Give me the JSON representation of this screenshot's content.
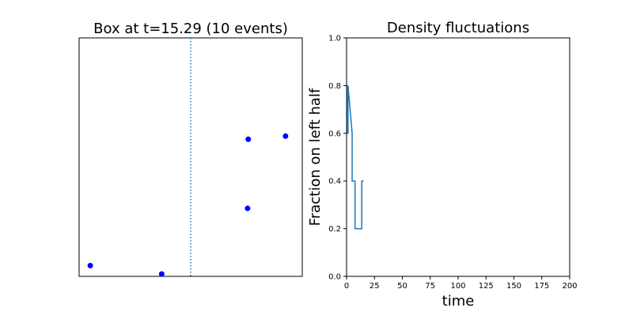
{
  "chart_data": [
    {
      "type": "scatter",
      "title": "Box at t=15.29 (10 events)",
      "xlabel": "",
      "ylabel": "",
      "xlim": [
        0,
        1
      ],
      "ylim": [
        0,
        1
      ],
      "axes_ticks": false,
      "divider": {
        "x": 0.5,
        "style": "dotted",
        "color": "#1f77b4"
      },
      "marker_color": "#0000ff",
      "points": [
        {
          "x": 0.05,
          "y": 0.045
        },
        {
          "x": 0.37,
          "y": 0.01
        },
        {
          "x": 0.755,
          "y": 0.285
        },
        {
          "x": 0.758,
          "y": 0.575
        },
        {
          "x": 0.925,
          "y": 0.588
        }
      ]
    },
    {
      "type": "line",
      "step": true,
      "title": "Density fluctuations",
      "xlabel": "time",
      "ylabel": "Fraction on left half",
      "xlim": [
        0,
        200
      ],
      "ylim": [
        0,
        1
      ],
      "xticks": [
        0,
        25,
        50,
        75,
        100,
        125,
        150,
        175,
        200
      ],
      "yticks": [
        "0.0",
        "0.2",
        "0.4",
        "0.6",
        "0.8",
        "1.0"
      ],
      "line_color": "#1f77b4",
      "series": [
        {
          "x": [
            0,
            0.7,
            0.7,
            1.3,
            1.3,
            5.0,
            5.0,
            7.6,
            7.6,
            13.6,
            13.6,
            15.29
          ],
          "y": [
            0.8,
            0.8,
            0.6,
            0.6,
            0.8,
            0.6,
            0.4,
            0.4,
            0.2,
            0.2,
            0.4,
            0.4
          ]
        }
      ]
    }
  ]
}
